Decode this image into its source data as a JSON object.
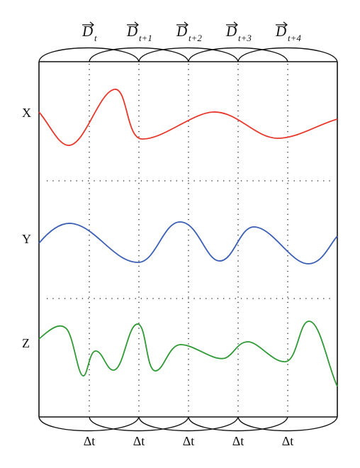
{
  "channels": {
    "x": {
      "label": "X",
      "color": "#e8382b"
    },
    "y": {
      "label": "Y",
      "color": "#3a5fb4"
    },
    "z": {
      "label": "Z",
      "color": "#2f9a35"
    }
  },
  "windows": [
    {
      "symbol": "D",
      "subscript": "t"
    },
    {
      "symbol": "D",
      "subscript": "t+1"
    },
    {
      "symbol": "D",
      "subscript": "t+2"
    },
    {
      "symbol": "D",
      "subscript": "t+3"
    },
    {
      "symbol": "D",
      "subscript": "t+4"
    }
  ],
  "step_label": "Δt",
  "step_count": 5
}
